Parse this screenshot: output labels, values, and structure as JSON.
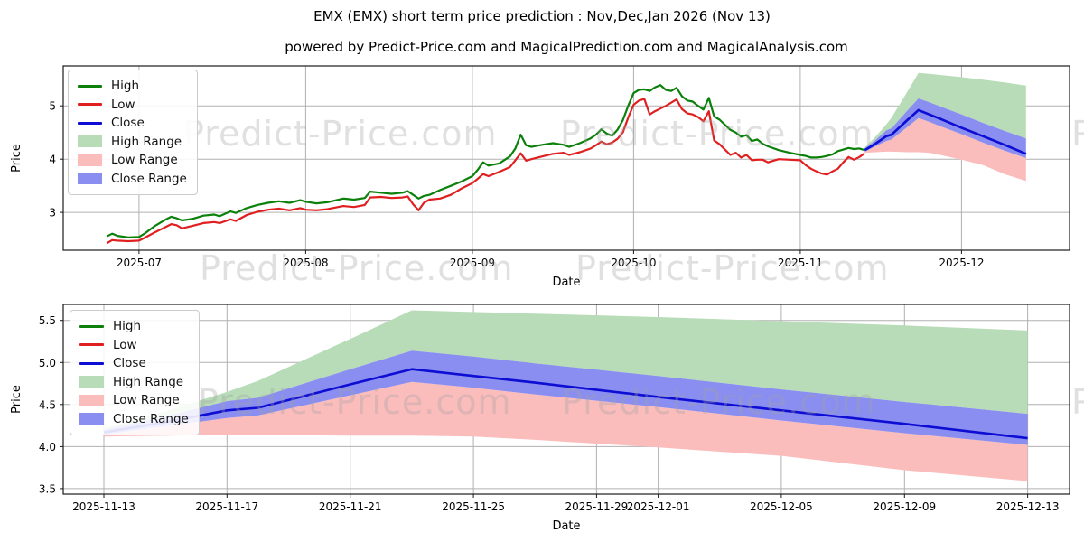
{
  "title": "EMX (EMX) short term price prediction : Nov,Dec,Jan 2026 (Nov 13)",
  "subtitle": "powered by Predict-Price.com and MagicalPrediction.com and MagicalAnalysis.com",
  "watermark": "Predict-Price.com",
  "legend": [
    "High",
    "Low",
    "Close",
    "High Range",
    "Low Range",
    "Close Range"
  ],
  "colors": {
    "high_line": "#0b800b",
    "low_line": "#e02020",
    "close_line": "#0d0dd4",
    "high_range": "#b7dcb7",
    "low_range": "#fbbcbc",
    "close_range": "#8a8ef0",
    "grid": "#b0b0b0",
    "axis": "#1a1a1a",
    "text": "#000000"
  },
  "chart_data": [
    {
      "type": "line",
      "panel": "price-history-and-forecast",
      "xlabel": "Date",
      "ylabel": "Price",
      "grid": true,
      "legend_position": "upper left",
      "x_unit": "days since 2025-06-25",
      "xlim": [
        -8.1,
        179.1
      ],
      "ylim": [
        2.29,
        5.75
      ],
      "xticks": [
        {
          "d": 6,
          "label": "2025-07"
        },
        {
          "d": 37,
          "label": "2025-08"
        },
        {
          "d": 68,
          "label": "2025-09"
        },
        {
          "d": 98,
          "label": "2025-10"
        },
        {
          "d": 129,
          "label": "2025-11"
        },
        {
          "d": 159,
          "label": "2025-12"
        }
      ],
      "yticks": [
        {
          "v": 3,
          "label": "3"
        },
        {
          "v": 4,
          "label": "4"
        },
        {
          "v": 5,
          "label": "5"
        }
      ],
      "history_points_format": [
        "day",
        "high",
        "low"
      ],
      "history_points": [
        [
          0,
          2.55,
          2.42
        ],
        [
          1,
          2.6,
          2.48
        ],
        [
          2,
          2.56,
          2.47
        ],
        [
          4,
          2.53,
          2.46
        ],
        [
          6,
          2.54,
          2.47
        ],
        [
          7,
          2.6,
          2.52
        ],
        [
          9,
          2.75,
          2.63
        ],
        [
          11,
          2.87,
          2.73
        ],
        [
          12,
          2.92,
          2.78
        ],
        [
          13,
          2.89,
          2.76
        ],
        [
          14,
          2.85,
          2.7
        ],
        [
          16,
          2.88,
          2.75
        ],
        [
          18,
          2.94,
          2.8
        ],
        [
          20,
          2.96,
          2.82
        ],
        [
          21,
          2.93,
          2.8
        ],
        [
          23,
          3.02,
          2.87
        ],
        [
          24,
          2.99,
          2.84
        ],
        [
          26,
          3.08,
          2.95
        ],
        [
          28,
          3.14,
          3.01
        ],
        [
          30,
          3.18,
          3.05
        ],
        [
          32,
          3.21,
          3.07
        ],
        [
          34,
          3.18,
          3.04
        ],
        [
          36,
          3.23,
          3.08
        ],
        [
          37,
          3.2,
          3.05
        ],
        [
          39,
          3.17,
          3.04
        ],
        [
          41,
          3.19,
          3.06
        ],
        [
          44,
          3.26,
          3.12
        ],
        [
          46,
          3.24,
          3.1
        ],
        [
          48,
          3.27,
          3.14
        ],
        [
          49,
          3.39,
          3.28
        ],
        [
          51,
          3.37,
          3.29
        ],
        [
          53,
          3.35,
          3.27
        ],
        [
          55,
          3.37,
          3.28
        ],
        [
          56,
          3.4,
          3.3
        ],
        [
          57,
          3.33,
          3.15
        ],
        [
          58,
          3.26,
          3.04
        ],
        [
          59,
          3.31,
          3.18
        ],
        [
          60,
          3.33,
          3.24
        ],
        [
          62,
          3.42,
          3.26
        ],
        [
          64,
          3.5,
          3.33
        ],
        [
          66,
          3.58,
          3.45
        ],
        [
          68,
          3.68,
          3.55
        ],
        [
          69,
          3.8,
          3.63
        ],
        [
          70,
          3.94,
          3.72
        ],
        [
          71,
          3.88,
          3.68
        ],
        [
          73,
          3.92,
          3.76
        ],
        [
          75,
          4.05,
          3.85
        ],
        [
          76,
          4.2,
          3.98
        ],
        [
          77,
          4.46,
          4.11
        ],
        [
          78,
          4.26,
          3.97
        ],
        [
          79,
          4.23,
          4.0
        ],
        [
          81,
          4.27,
          4.05
        ],
        [
          83,
          4.3,
          4.1
        ],
        [
          85,
          4.27,
          4.12
        ],
        [
          86,
          4.23,
          4.08
        ],
        [
          88,
          4.3,
          4.13
        ],
        [
          90,
          4.39,
          4.2
        ],
        [
          91,
          4.46,
          4.26
        ],
        [
          92,
          4.56,
          4.33
        ],
        [
          93,
          4.48,
          4.28
        ],
        [
          94,
          4.44,
          4.31
        ],
        [
          95,
          4.55,
          4.38
        ],
        [
          96,
          4.73,
          4.5
        ],
        [
          97,
          5.0,
          4.78
        ],
        [
          98,
          5.24,
          5.02
        ],
        [
          99,
          5.3,
          5.1
        ],
        [
          100,
          5.31,
          5.13
        ],
        [
          101,
          5.28,
          4.84
        ],
        [
          102,
          5.35,
          4.9
        ],
        [
          103,
          5.39,
          4.95
        ],
        [
          104,
          5.3,
          5.0
        ],
        [
          105,
          5.28,
          5.06
        ],
        [
          106,
          5.34,
          5.12
        ],
        [
          107,
          5.18,
          4.94
        ],
        [
          108,
          5.1,
          4.86
        ],
        [
          109,
          5.08,
          4.84
        ],
        [
          110,
          5.0,
          4.79
        ],
        [
          111,
          4.93,
          4.71
        ],
        [
          112,
          5.15,
          4.9
        ],
        [
          113,
          4.8,
          4.35
        ],
        [
          114,
          4.74,
          4.28
        ],
        [
          116,
          4.55,
          4.08
        ],
        [
          117,
          4.5,
          4.12
        ],
        [
          118,
          4.42,
          4.03
        ],
        [
          119,
          4.45,
          4.08
        ],
        [
          120,
          4.34,
          3.98
        ],
        [
          121,
          4.37,
          3.99
        ],
        [
          122,
          4.29,
          3.99
        ],
        [
          123,
          4.24,
          3.94
        ],
        [
          125,
          4.17,
          4.0
        ],
        [
          127,
          4.12,
          3.99
        ],
        [
          129,
          4.08,
          3.98
        ],
        [
          130,
          4.06,
          3.89
        ],
        [
          131,
          4.03,
          3.82
        ],
        [
          132,
          4.03,
          3.77
        ],
        [
          133,
          4.04,
          3.73
        ],
        [
          134,
          4.06,
          3.71
        ],
        [
          135,
          4.09,
          3.77
        ],
        [
          136,
          4.15,
          3.82
        ],
        [
          137,
          4.18,
          3.94
        ],
        [
          138,
          4.21,
          4.04
        ],
        [
          139,
          4.19,
          3.99
        ],
        [
          140,
          4.2,
          4.04
        ],
        [
          141,
          4.17,
          4.11
        ]
      ],
      "forecast_points_format": [
        "day",
        "close",
        "close_lower",
        "close_upper",
        "high_upper",
        "low_lower"
      ],
      "forecast_points": [
        [
          141,
          4.17,
          4.14,
          4.2,
          4.22,
          4.12
        ],
        [
          143,
          4.29,
          4.24,
          4.36,
          4.42,
          4.13
        ],
        [
          145,
          4.43,
          4.34,
          4.54,
          4.65,
          4.14
        ],
        [
          146,
          4.46,
          4.37,
          4.58,
          4.78,
          4.14
        ],
        [
          149,
          4.74,
          4.61,
          4.92,
          5.28,
          4.13
        ],
        [
          151,
          4.92,
          4.77,
          5.14,
          5.62,
          4.13
        ],
        [
          153,
          4.84,
          4.7,
          5.07,
          5.6,
          4.12
        ],
        [
          155,
          4.76,
          4.62,
          4.99,
          5.58,
          4.08
        ],
        [
          159,
          4.59,
          4.47,
          4.84,
          5.54,
          3.99
        ],
        [
          163,
          4.43,
          4.31,
          4.68,
          5.49,
          3.89
        ],
        [
          167,
          4.27,
          4.16,
          4.53,
          5.44,
          3.72
        ],
        [
          171,
          4.1,
          4.02,
          4.39,
          5.38,
          3.59
        ]
      ]
    },
    {
      "type": "line",
      "panel": "forecast-detail",
      "xlabel": "Date",
      "ylabel": "Price",
      "grid": true,
      "legend_position": "upper left",
      "x_unit": "days since 2025-11-13",
      "xlim": [
        -1.32,
        31.36
      ],
      "ylim": [
        3.435,
        5.69
      ],
      "xticks": [
        {
          "d": 0,
          "label": "2025-11-13"
        },
        {
          "d": 4,
          "label": "2025-11-17"
        },
        {
          "d": 8,
          "label": "2025-11-21"
        },
        {
          "d": 12,
          "label": "2025-11-25"
        },
        {
          "d": 16,
          "label": "2025-11-29"
        },
        {
          "d": 18,
          "label": "2025-12-01"
        },
        {
          "d": 22,
          "label": "2025-12-05"
        },
        {
          "d": 26,
          "label": "2025-12-09"
        },
        {
          "d": 30,
          "label": "2025-12-13"
        }
      ],
      "yticks": [
        {
          "v": 3.5,
          "label": "3.5"
        },
        {
          "v": 4.0,
          "label": "4.0"
        },
        {
          "v": 4.5,
          "label": "4.5"
        },
        {
          "v": 5.0,
          "label": "5.0"
        },
        {
          "v": 5.5,
          "label": "5.5"
        }
      ],
      "forecast_points_format": [
        "day",
        "close",
        "close_lower",
        "close_upper",
        "high_upper",
        "low_lower"
      ],
      "forecast_points": [
        [
          0,
          4.17,
          4.14,
          4.2,
          4.22,
          4.12
        ],
        [
          2,
          4.29,
          4.24,
          4.36,
          4.42,
          4.13
        ],
        [
          4,
          4.43,
          4.34,
          4.54,
          4.65,
          4.14
        ],
        [
          5,
          4.46,
          4.37,
          4.58,
          4.78,
          4.14
        ],
        [
          8,
          4.74,
          4.61,
          4.92,
          5.28,
          4.13
        ],
        [
          10,
          4.92,
          4.77,
          5.14,
          5.62,
          4.13
        ],
        [
          12,
          4.84,
          4.7,
          5.07,
          5.6,
          4.12
        ],
        [
          14,
          4.76,
          4.62,
          4.99,
          5.58,
          4.08
        ],
        [
          18,
          4.59,
          4.47,
          4.84,
          5.54,
          3.99
        ],
        [
          22,
          4.43,
          4.31,
          4.68,
          5.49,
          3.89
        ],
        [
          26,
          4.27,
          4.16,
          4.53,
          5.44,
          3.72
        ],
        [
          30,
          4.1,
          4.02,
          4.39,
          5.38,
          3.59
        ]
      ]
    }
  ]
}
